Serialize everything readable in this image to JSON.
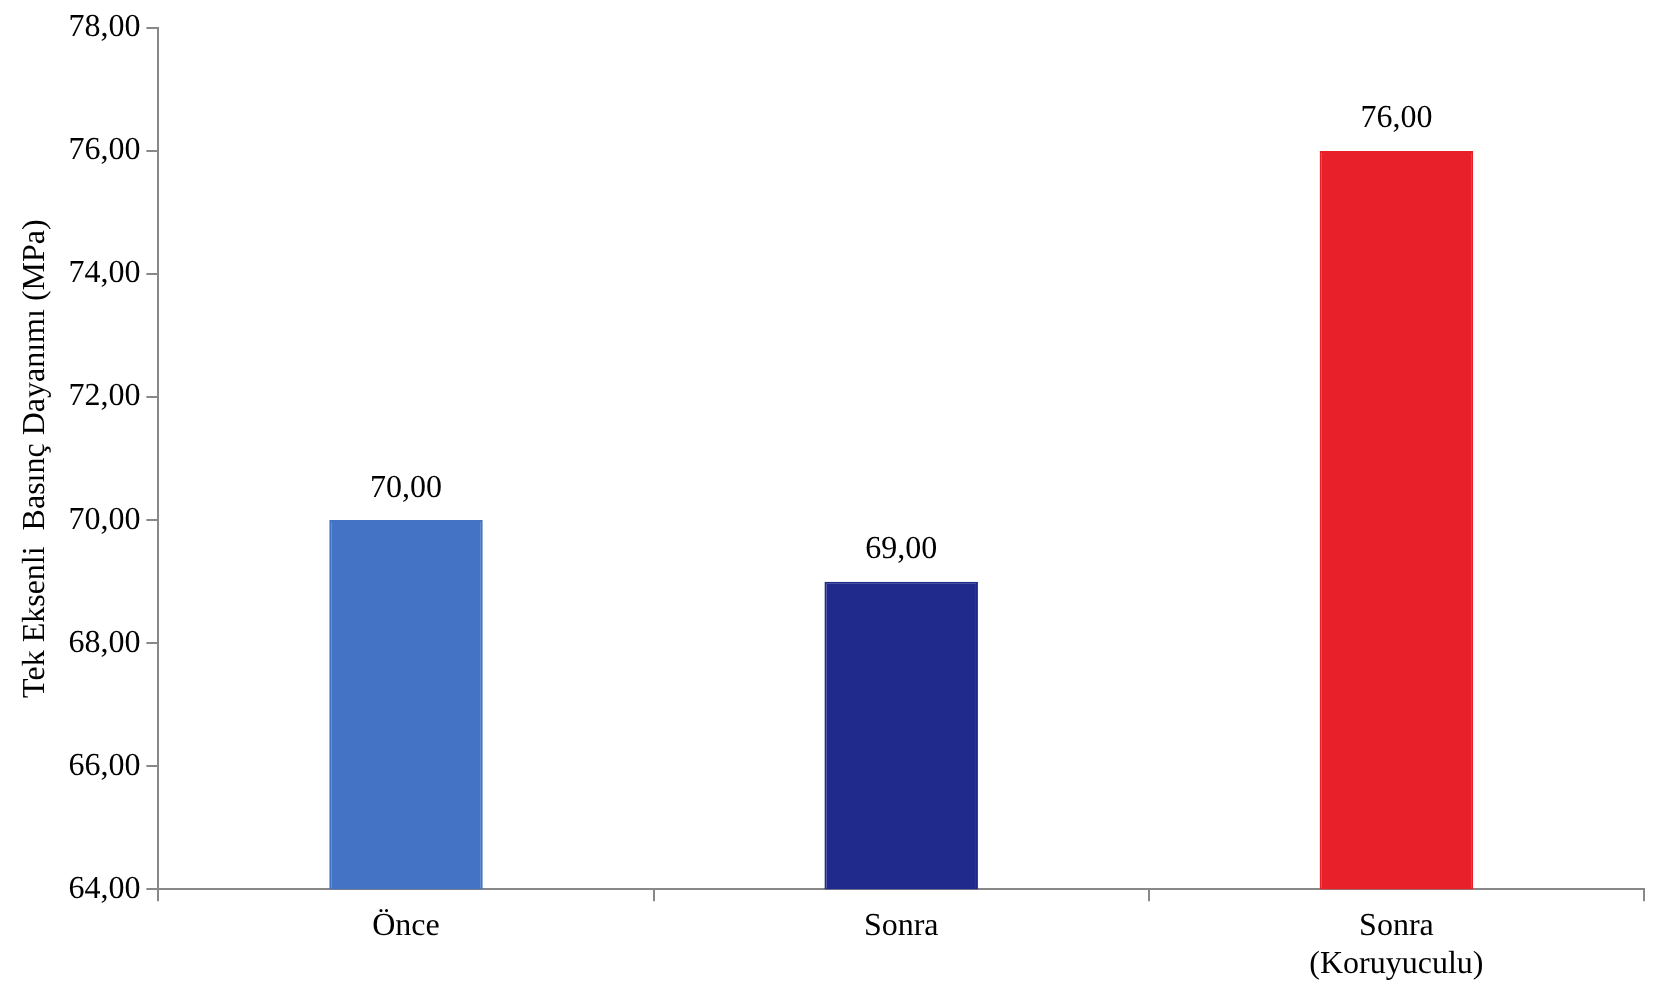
{
  "chart_data": {
    "type": "bar",
    "ylabel": "Tek Eksenli  Basınç Dayanımı (MPa)",
    "categories": [
      "Önce",
      "Sonra",
      "Sonra (Koruyuculu)"
    ],
    "values": [
      70,
      69,
      76
    ],
    "colors": [
      "#4472c4",
      "#1f2a8c",
      "#e8202a"
    ],
    "value_labels": [
      "70,00",
      "69,00",
      "76,00"
    ],
    "ylim": [
      64,
      78
    ],
    "yticks": [
      {
        "value": 64,
        "label": "64,00"
      },
      {
        "value": 66,
        "label": "66,00"
      },
      {
        "value": 68,
        "label": "68,00"
      },
      {
        "value": 70,
        "label": "70,00"
      },
      {
        "value": 72,
        "label": "72,00"
      },
      {
        "value": 74,
        "label": "74,00"
      },
      {
        "value": 76,
        "label": "76,00"
      },
      {
        "value": 78,
        "label": "78,00"
      }
    ],
    "grid": false,
    "legend": false
  }
}
